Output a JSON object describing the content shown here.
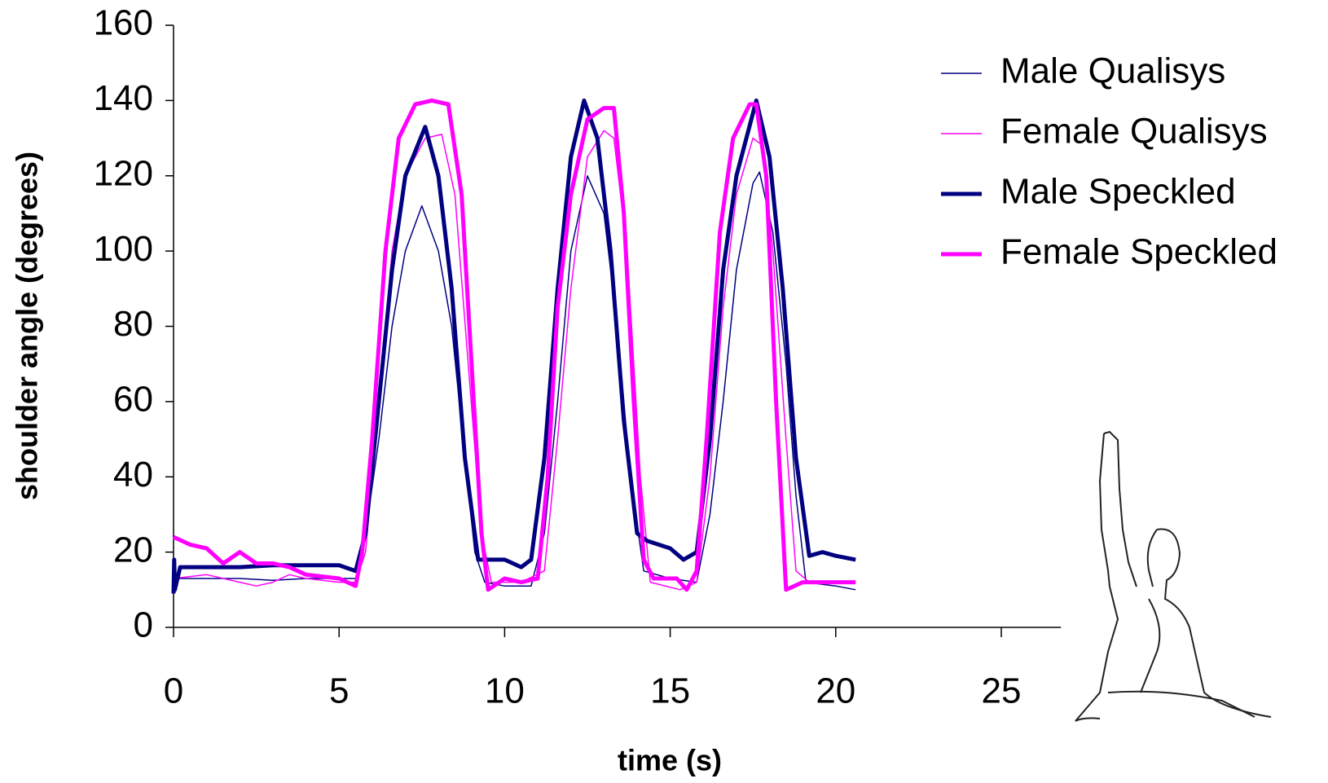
{
  "chart_data": {
    "type": "line",
    "xlabel": "time (s)",
    "ylabel": "shoulder angle (degrees)",
    "xlim": [
      0,
      26.8
    ],
    "xticks": [
      0,
      5,
      10,
      15,
      20,
      25
    ],
    "ylim": [
      0,
      160
    ],
    "yticks": [
      0,
      20,
      40,
      60,
      80,
      100,
      120,
      140,
      160
    ],
    "series": [
      {
        "name": "Male Qualisys",
        "color": "#000080",
        "linewidth": 1.5,
        "x": [
          0,
          1,
          2,
          3,
          4,
          5,
          5.5,
          5.8,
          6.2,
          6.6,
          7.0,
          7.5,
          8.0,
          8.4,
          8.8,
          9.1,
          9.4,
          10,
          10.8,
          11.2,
          11.6,
          12.0,
          12.5,
          13.0,
          13.4,
          13.8,
          14.2,
          15,
          15.8,
          16.2,
          16.6,
          17.0,
          17.5,
          17.7,
          18.1,
          18.5,
          18.8,
          19.1,
          20,
          20.6
        ],
        "values": [
          13,
          13,
          13,
          12.5,
          13,
          13,
          13,
          25,
          50,
          80,
          100,
          112,
          100,
          80,
          45,
          20,
          12,
          11,
          11,
          25,
          60,
          100,
          120,
          110,
          80,
          40,
          15,
          13,
          12,
          30,
          60,
          95,
          118,
          121,
          105,
          70,
          35,
          12,
          11,
          10
        ]
      },
      {
        "name": "Female Qualisys",
        "color": "#ff00ff",
        "linewidth": 1.5,
        "x": [
          0,
          1,
          2,
          2.5,
          3,
          3.5,
          4,
          5,
          5.5,
          5.8,
          6.2,
          6.6,
          7.0,
          7.6,
          8.1,
          8.5,
          8.9,
          9.3,
          9.6,
          10.5,
          11.2,
          11.6,
          12.0,
          12.5,
          13.0,
          13.3,
          13.7,
          14.1,
          14.4,
          15.3,
          15.8,
          16.2,
          16.6,
          17.0,
          17.5,
          17.8,
          18.1,
          18.5,
          18.8,
          19.2,
          20.6
        ],
        "values": [
          13,
          14,
          12,
          11,
          12,
          14,
          13,
          12,
          12,
          20,
          60,
          100,
          120,
          130,
          131,
          115,
          70,
          25,
          12,
          12,
          15,
          50,
          90,
          125,
          132,
          130,
          100,
          40,
          12,
          10,
          12,
          40,
          85,
          115,
          130,
          128,
          100,
          50,
          15,
          12,
          12
        ]
      },
      {
        "name": "Male Speckled",
        "color": "#000080",
        "linewidth": 5,
        "x": [
          0,
          0.02,
          0.04,
          0.2,
          1,
          2,
          3,
          4,
          5,
          5.5,
          5.8,
          6.2,
          6.6,
          7.0,
          7.6,
          8.0,
          8.4,
          8.8,
          9.2,
          9.6,
          10,
          10.5,
          10.8,
          11.2,
          11.6,
          12.0,
          12.4,
          12.8,
          13.2,
          13.6,
          14.0,
          14.3,
          15,
          15.4,
          15.8,
          16.2,
          16.6,
          17.0,
          17.6,
          18.0,
          18.4,
          18.8,
          19.2,
          19.6,
          20,
          20.6
        ],
        "values": [
          9,
          18,
          10,
          16,
          16,
          16,
          16.5,
          16.5,
          16.5,
          15,
          25,
          60,
          95,
          120,
          133,
          120,
          90,
          45,
          18,
          18,
          18,
          16,
          18,
          45,
          90,
          125,
          140,
          130,
          100,
          55,
          25,
          23,
          21,
          18,
          20,
          50,
          95,
          120,
          140,
          125,
          90,
          45,
          19,
          20,
          19,
          18
        ]
      },
      {
        "name": "Female Speckled",
        "color": "#ff00ff",
        "linewidth": 5,
        "x": [
          0,
          0.5,
          1,
          1.5,
          2,
          2.5,
          3,
          3.5,
          4,
          5,
          5.5,
          5.7,
          6,
          6.4,
          6.8,
          7.3,
          7.8,
          8.3,
          8.7,
          9.0,
          9.3,
          9.5,
          10,
          10.5,
          11,
          11.3,
          11.6,
          12,
          12.5,
          13,
          13.3,
          13.6,
          13.9,
          14.2,
          14.5,
          15.2,
          15.5,
          15.8,
          16.1,
          16.5,
          16.9,
          17.4,
          17.6,
          17.9,
          18.2,
          18.5,
          19,
          20.6
        ],
        "values": [
          24,
          22,
          21,
          17,
          20,
          17,
          17,
          16,
          14,
          13,
          11,
          20,
          50,
          100,
          130,
          139,
          140,
          139,
          115,
          70,
          25,
          10,
          13,
          12,
          13,
          40,
          85,
          115,
          135,
          138,
          138,
          110,
          60,
          18,
          13,
          13,
          10,
          15,
          50,
          105,
          130,
          139,
          139,
          120,
          60,
          10,
          12,
          12
        ]
      }
    ]
  }
}
